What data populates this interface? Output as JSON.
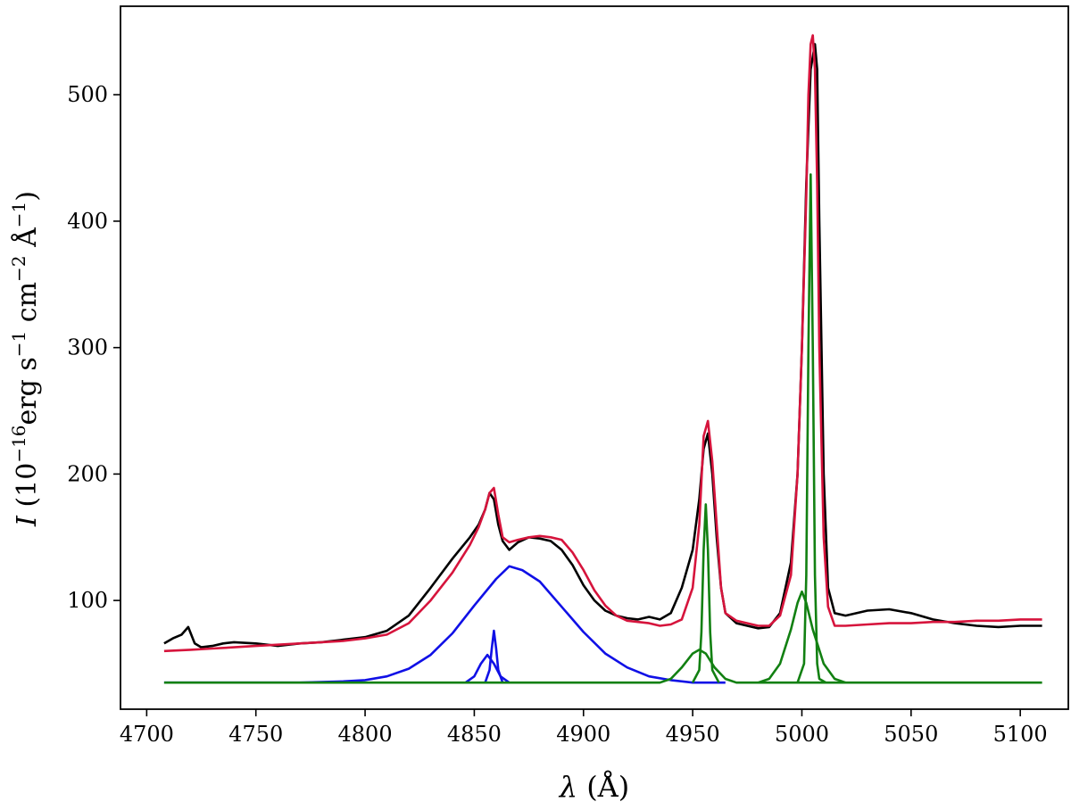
{
  "chart_data": {
    "type": "line",
    "title": "",
    "xlabel": "λ (Å)",
    "ylabel": "I (10^−16 erg s^−1 cm^−2 Å^−1)",
    "xlim": [
      4688,
      5122
    ],
    "ylim": [
      14,
      570
    ],
    "x_ticks": [
      4700,
      4750,
      4800,
      4850,
      4900,
      4950,
      5000,
      5050,
      5100
    ],
    "y_ticks": [
      100,
      200,
      300,
      400,
      500
    ],
    "x_tick_labels": [
      "4700",
      "4750",
      "4800",
      "4850",
      "4900",
      "4950",
      "5000",
      "5050",
      "5100"
    ],
    "y_tick_labels": [
      "100",
      "200",
      "300",
      "400",
      "500"
    ],
    "grid": false,
    "legend": null,
    "baseline": 35,
    "series": [
      {
        "role": "observed",
        "color": "#000000",
        "x": [
          4708,
          4712,
          4716,
          4719,
          4722,
          4725,
          4730,
          4735,
          4740,
          4750,
          4760,
          4770,
          4780,
          4790,
          4800,
          4810,
          4820,
          4830,
          4840,
          4848,
          4852,
          4855,
          4857,
          4859,
          4861,
          4863,
          4866,
          4870,
          4875,
          4880,
          4885,
          4890,
          4895,
          4900,
          4905,
          4910,
          4915,
          4920,
          4925,
          4930,
          4935,
          4940,
          4945,
          4950,
          4953,
          4955,
          4957,
          4959,
          4961,
          4963,
          4965,
          4970,
          4975,
          4980,
          4985,
          4990,
          4995,
          4998,
          5000,
          5002,
          5004,
          5006,
          5007,
          5008,
          5010,
          5012,
          5015,
          5020,
          5030,
          5040,
          5050,
          5060,
          5070,
          5080,
          5090,
          5100,
          5110
        ],
        "y": [
          66,
          70,
          73,
          79,
          66,
          63,
          64,
          66,
          67,
          66,
          64,
          66,
          67,
          69,
          71,
          76,
          88,
          110,
          133,
          150,
          160,
          172,
          185,
          180,
          160,
          147,
          140,
          146,
          150,
          149,
          147,
          140,
          128,
          112,
          100,
          92,
          88,
          86,
          85,
          87,
          85,
          90,
          110,
          140,
          180,
          220,
          232,
          200,
          150,
          110,
          90,
          82,
          80,
          78,
          79,
          90,
          130,
          200,
          300,
          430,
          520,
          540,
          520,
          400,
          200,
          110,
          90,
          88,
          92,
          93,
          90,
          85,
          82,
          80,
          79,
          80,
          80
        ]
      },
      {
        "role": "total-fit",
        "color": "#d6143c",
        "x": [
          4708,
          4720,
          4730,
          4740,
          4750,
          4760,
          4770,
          4780,
          4790,
          4800,
          4810,
          4820,
          4830,
          4840,
          4848,
          4852,
          4855,
          4857,
          4859,
          4861,
          4863,
          4866,
          4870,
          4875,
          4880,
          4885,
          4890,
          4895,
          4900,
          4905,
          4910,
          4915,
          4920,
          4925,
          4930,
          4935,
          4940,
          4945,
          4950,
          4953,
          4955,
          4957,
          4959,
          4961,
          4963,
          4965,
          4970,
          4975,
          4980,
          4985,
          4990,
          4995,
          4998,
          5000,
          5002,
          5003,
          5004,
          5005,
          5006,
          5007,
          5008,
          5010,
          5012,
          5015,
          5020,
          5030,
          5040,
          5050,
          5060,
          5070,
          5080,
          5090,
          5100,
          5110
        ],
        "y": [
          60,
          61,
          62,
          63,
          64,
          65,
          66,
          67,
          68,
          70,
          73,
          82,
          100,
          122,
          144,
          158,
          172,
          185,
          189,
          168,
          150,
          146,
          148,
          150,
          151,
          150,
          148,
          138,
          124,
          108,
          96,
          88,
          84,
          83,
          82,
          80,
          81,
          85,
          110,
          160,
          230,
          242,
          210,
          160,
          110,
          90,
          84,
          82,
          80,
          80,
          88,
          120,
          200,
          300,
          420,
          500,
          540,
          547,
          520,
          430,
          300,
          150,
          95,
          80,
          80,
          81,
          82,
          82,
          83,
          83,
          84,
          84,
          85,
          85
        ]
      },
      {
        "role": "broad-component",
        "color": "#1010e6",
        "x": [
          4708,
          4770,
          4790,
          4800,
          4810,
          4820,
          4830,
          4840,
          4850,
          4860,
          4866,
          4872,
          4880,
          4890,
          4900,
          4910,
          4920,
          4930,
          4940,
          4950,
          4960,
          4965
        ],
        "y": [
          35,
          35,
          36,
          37,
          40,
          46,
          57,
          74,
          96,
          117,
          127,
          124,
          115,
          95,
          75,
          58,
          47,
          40,
          37,
          35,
          35,
          35
        ]
      },
      {
        "role": "narrow-component-1",
        "color": "#1010e6",
        "x": [
          4846,
          4850,
          4853,
          4856,
          4859,
          4862,
          4866
        ],
        "y": [
          35,
          40,
          50,
          57,
          50,
          40,
          35
        ]
      },
      {
        "role": "narrow-component-2",
        "color": "#1010e6",
        "x": [
          4855,
          4857,
          4858,
          4859,
          4860,
          4861,
          4863
        ],
        "y": [
          35,
          45,
          62,
          76,
          62,
          45,
          35
        ]
      },
      {
        "role": "green-component-1",
        "color": "#128012",
        "x": [
          4708,
          4935,
          4940,
          4945,
          4950,
          4953,
          4956,
          4960,
          4965,
          4970,
          5110
        ],
        "y": [
          35,
          35,
          38,
          47,
          58,
          61,
          58,
          47,
          38,
          35,
          35
        ]
      },
      {
        "role": "green-component-2",
        "color": "#128012",
        "x": [
          4950,
          4953,
          4954,
          4955,
          4956,
          4957,
          4958,
          4959,
          4962
        ],
        "y": [
          35,
          45,
          75,
          140,
          176,
          140,
          75,
          45,
          35
        ]
      },
      {
        "role": "green-component-3",
        "color": "#128012",
        "x": [
          4980,
          4985,
          4990,
          4995,
          4998,
          5000,
          5002,
          5005,
          5010,
          5015,
          5020
        ],
        "y": [
          35,
          38,
          50,
          77,
          98,
          107,
          98,
          77,
          50,
          38,
          35
        ]
      },
      {
        "role": "green-component-4",
        "color": "#128012",
        "x": [
          4998,
          5001,
          5002,
          5003,
          5004,
          5005,
          5006,
          5007,
          5008,
          5011
        ],
        "y": [
          35,
          50,
          120,
          300,
          437,
          300,
          120,
          50,
          38,
          35
        ]
      }
    ]
  }
}
